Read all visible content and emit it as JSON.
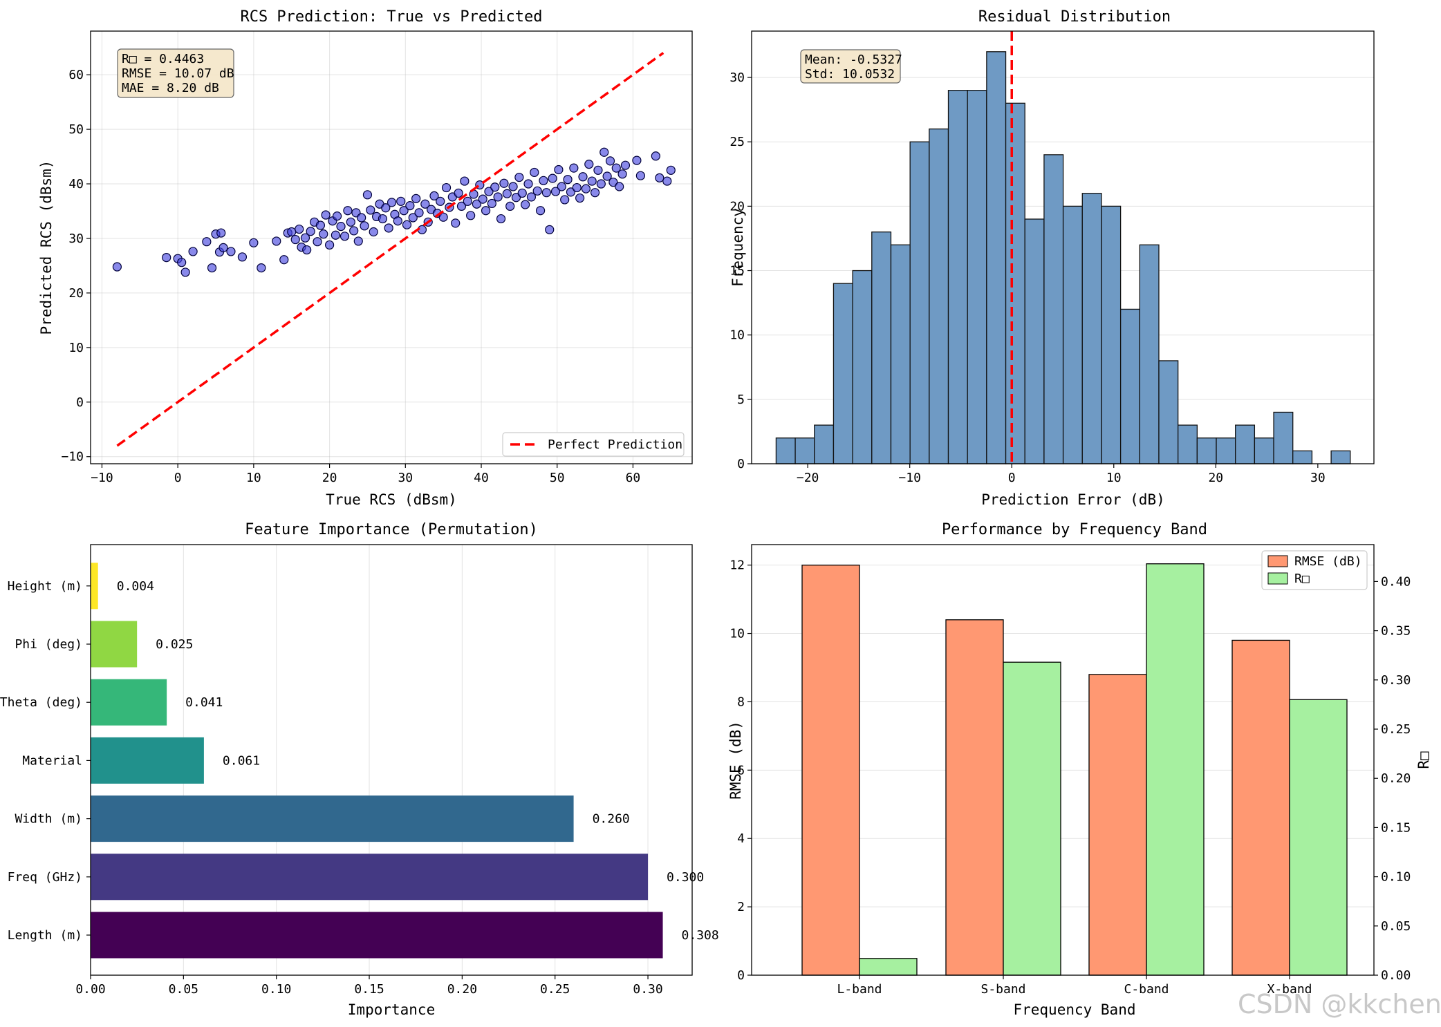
{
  "watermark": "CSDN @kkchenji",
  "chart_data": [
    {
      "type": "scatter",
      "title": "RCS Prediction: True vs Predicted",
      "xlabel": "True RCS (dBsm)",
      "ylabel": "Predicted RCS (dBsm)",
      "xlim": [
        -11.5,
        67.8
      ],
      "ylim": [
        -11.3,
        68
      ],
      "xticks": [
        -10,
        0,
        10,
        20,
        30,
        40,
        50,
        60
      ],
      "yticks": [
        -10,
        0,
        10,
        20,
        30,
        40,
        50,
        60
      ],
      "grid": true,
      "point_color": "#4040dd",
      "points": [
        [
          -8,
          24.8
        ],
        [
          -1.5,
          26.5
        ],
        [
          0,
          26.3
        ],
        [
          0.5,
          25.6
        ],
        [
          1,
          23.8
        ],
        [
          2,
          27.6
        ],
        [
          3.8,
          29.4
        ],
        [
          4.5,
          24.6
        ],
        [
          5,
          30.8
        ],
        [
          5.5,
          27.5
        ],
        [
          5.7,
          31
        ],
        [
          6,
          28.3
        ],
        [
          7,
          27.6
        ],
        [
          8.5,
          26.6
        ],
        [
          10,
          29.2
        ],
        [
          11,
          24.6
        ],
        [
          13,
          29.5
        ],
        [
          14,
          26.1
        ],
        [
          14.5,
          31
        ],
        [
          15,
          31.2
        ],
        [
          15.5,
          29.8
        ],
        [
          16,
          31.7
        ],
        [
          16.3,
          28.4
        ],
        [
          16.8,
          30.1
        ],
        [
          17,
          27.9
        ],
        [
          17.5,
          31.3
        ],
        [
          18,
          33
        ],
        [
          18.4,
          29.4
        ],
        [
          18.8,
          32.4
        ],
        [
          19.2,
          30.8
        ],
        [
          19.5,
          34.3
        ],
        [
          20,
          28.8
        ],
        [
          20.4,
          33.2
        ],
        [
          20.8,
          30.6
        ],
        [
          21,
          34.1
        ],
        [
          21.5,
          32.2
        ],
        [
          22,
          30.4
        ],
        [
          22.4,
          35.1
        ],
        [
          22.8,
          33
        ],
        [
          23.2,
          31.4
        ],
        [
          23.5,
          34.7
        ],
        [
          23.8,
          29.5
        ],
        [
          24.2,
          33.8
        ],
        [
          24.6,
          32.3
        ],
        [
          25,
          38
        ],
        [
          25.4,
          35.2
        ],
        [
          25.8,
          31.2
        ],
        [
          26.2,
          34
        ],
        [
          26.6,
          36.3
        ],
        [
          27,
          33.6
        ],
        [
          27.4,
          35.6
        ],
        [
          27.8,
          31.9
        ],
        [
          28.2,
          36.6
        ],
        [
          28.6,
          34.4
        ],
        [
          29,
          33.2
        ],
        [
          29.4,
          36.8
        ],
        [
          29.8,
          35.1
        ],
        [
          30.2,
          32.5
        ],
        [
          30.6,
          36
        ],
        [
          31,
          33.8
        ],
        [
          31.4,
          37.3
        ],
        [
          31.8,
          34.7
        ],
        [
          32.2,
          31.6
        ],
        [
          32.6,
          36.3
        ],
        [
          33,
          33
        ],
        [
          33.4,
          35.3
        ],
        [
          33.8,
          37.8
        ],
        [
          34.2,
          34.6
        ],
        [
          34.6,
          36.8
        ],
        [
          35,
          33.9
        ],
        [
          35.4,
          39.3
        ],
        [
          35.8,
          35.7
        ],
        [
          36.2,
          37.6
        ],
        [
          36.6,
          32.8
        ],
        [
          37,
          38.3
        ],
        [
          37.4,
          35.9
        ],
        [
          37.8,
          40.5
        ],
        [
          38.2,
          36.8
        ],
        [
          38.6,
          34.2
        ],
        [
          39,
          38.1
        ],
        [
          39.4,
          36.3
        ],
        [
          39.8,
          39.8
        ],
        [
          40.2,
          37.2
        ],
        [
          40.6,
          35.1
        ],
        [
          41,
          38.6
        ],
        [
          41.4,
          36.4
        ],
        [
          41.8,
          39.4
        ],
        [
          42.2,
          37.6
        ],
        [
          42.6,
          33.6
        ],
        [
          43,
          40.1
        ],
        [
          43.4,
          38.2
        ],
        [
          43.8,
          35.9
        ],
        [
          44.2,
          39.5
        ],
        [
          44.6,
          37.5
        ],
        [
          45,
          41.2
        ],
        [
          45.4,
          38.3
        ],
        [
          45.8,
          36.2
        ],
        [
          46.2,
          40
        ],
        [
          46.6,
          37.6
        ],
        [
          47,
          42.1
        ],
        [
          47.4,
          38.7
        ],
        [
          47.8,
          35.1
        ],
        [
          48.2,
          40.6
        ],
        [
          48.6,
          38.4
        ],
        [
          49,
          31.6
        ],
        [
          49.4,
          41
        ],
        [
          49.8,
          38.6
        ],
        [
          50.2,
          42.6
        ],
        [
          50.6,
          39.5
        ],
        [
          51,
          37.1
        ],
        [
          51.4,
          40.8
        ],
        [
          51.8,
          38.5
        ],
        [
          52.2,
          42.9
        ],
        [
          52.6,
          39.3
        ],
        [
          53,
          37.4
        ],
        [
          53.4,
          41.3
        ],
        [
          53.8,
          39.1
        ],
        [
          54.2,
          43.6
        ],
        [
          54.6,
          40.5
        ],
        [
          55,
          38.4
        ],
        [
          55.4,
          42.5
        ],
        [
          55.8,
          40
        ],
        [
          56.2,
          45.8
        ],
        [
          56.6,
          41.4
        ],
        [
          57,
          44.2
        ],
        [
          57.4,
          40.3
        ],
        [
          57.8,
          42.9
        ],
        [
          58.2,
          39.5
        ],
        [
          58.6,
          41.8
        ],
        [
          59,
          43.4
        ],
        [
          60.5,
          44.3
        ],
        [
          61,
          41.5
        ],
        [
          63,
          45.1
        ],
        [
          63.5,
          41.1
        ],
        [
          64.5,
          40.5
        ],
        [
          65,
          42.5
        ]
      ],
      "reference_line": {
        "x": [
          -8,
          64
        ],
        "y": [
          -8,
          64
        ],
        "label": "Perfect Prediction",
        "color": "#ff0000"
      },
      "stats_box": [
        "R□ = 0.4463",
        "RMSE = 10.07 dB",
        "MAE = 8.20 dB"
      ]
    },
    {
      "type": "histogram",
      "title": "Residual Distribution",
      "xlabel": "Prediction Error (dB)",
      "ylabel": "Frequency",
      "xlim": [
        -25.5,
        35.5
      ],
      "ylim": [
        0,
        33.6
      ],
      "xticks": [
        -20,
        -10,
        0,
        10,
        20,
        30
      ],
      "yticks": [
        0,
        5,
        10,
        15,
        20,
        25,
        30
      ],
      "bin_start": -23.1,
      "bin_width": 1.876,
      "counts": [
        2,
        2,
        3,
        14,
        15,
        18,
        17,
        25,
        26,
        29,
        29,
        32,
        28,
        19,
        24,
        20,
        21,
        20,
        12,
        17,
        8,
        3,
        2,
        2,
        3,
        2,
        4,
        1,
        0,
        1
      ],
      "bar_color": "#6f9ac4",
      "mean_line": 0,
      "stats_box": [
        "Mean: -0.5327",
        "Std: 10.0532"
      ]
    },
    {
      "type": "barh",
      "title": "Feature Importance (Permutation)",
      "xlabel": "Importance",
      "xlim": [
        0,
        0.3238
      ],
      "xticks": [
        0.0,
        0.05,
        0.1,
        0.15,
        0.2,
        0.25,
        0.3
      ],
      "categories": [
        "Length (m)",
        "Freq (GHz)",
        "Width (m)",
        "Material",
        "Theta (deg)",
        "Phi (deg)",
        "Height (m)"
      ],
      "values": [
        0.308,
        0.3,
        0.26,
        0.061,
        0.041,
        0.025,
        0.004
      ],
      "value_labels": [
        "0.308",
        "0.300",
        "0.260",
        "0.061",
        "0.041",
        "0.025",
        "0.004"
      ],
      "colors": [
        "#440154",
        "#443983",
        "#31688e",
        "#21918c",
        "#35b779",
        "#90d743",
        "#fde725"
      ]
    },
    {
      "type": "bar",
      "title": "Performance by Frequency Band",
      "xlabel": "Frequency Band",
      "categories": [
        "L-band",
        "S-band",
        "C-band",
        "X-band"
      ],
      "series": [
        {
          "name": "RMSE (dB)",
          "axis": "left",
          "color": "#ff9872",
          "values": [
            12.0,
            10.4,
            8.8,
            9.8
          ]
        },
        {
          "name": "R□",
          "axis": "right",
          "color": "#a6f0a0",
          "values": [
            0.017,
            0.318,
            0.418,
            0.28
          ]
        }
      ],
      "ylabel_left": "RMSE (dB)",
      "ylabel_right": "R□",
      "ylabel_left_color": "#ff7f50",
      "ylabel_right_color": "#008000",
      "ylim_left": [
        0,
        12.6
      ],
      "ylim_right": [
        0,
        0.4375
      ],
      "yticks_left": [
        0,
        2,
        4,
        6,
        8,
        10,
        12
      ],
      "yticks_right": [
        0.0,
        0.05,
        0.1,
        0.15,
        0.2,
        0.25,
        0.3,
        0.35,
        0.4
      ],
      "legend": "top-right"
    }
  ]
}
